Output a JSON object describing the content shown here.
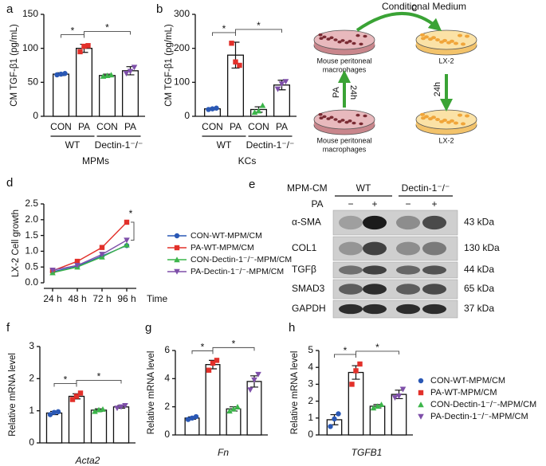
{
  "chart_data": [
    {
      "type": "bar",
      "panel": "a",
      "y_label": "CM TGF-β1 (pg/mL)",
      "categories": [
        "CON",
        "PA",
        "CON",
        "PA"
      ],
      "values": [
        62,
        100,
        60,
        67
      ],
      "errors": [
        2,
        6,
        2,
        6
      ],
      "points": [
        [
          61,
          62,
          63
        ],
        [
          95,
          103,
          104
        ],
        [
          59,
          60,
          61
        ],
        [
          63,
          66,
          72
        ]
      ],
      "colors": [
        "#2a58b5",
        "#e2302a",
        "#3cb54a",
        "#7e4fa9"
      ],
      "ylim": [
        0,
        150
      ],
      "yticks": [
        0,
        50,
        100,
        150
      ],
      "groups": [
        {
          "label": "WT",
          "categories": [
            0,
            1
          ]
        },
        {
          "label": "Dectin-1⁻/⁻",
          "categories": [
            2,
            3
          ]
        }
      ],
      "group_title": "MPMs",
      "significance": [
        {
          "pair": [
            0,
            1
          ],
          "label": "*"
        },
        {
          "pair": [
            1,
            3
          ],
          "label": "*"
        }
      ]
    },
    {
      "type": "bar",
      "panel": "b",
      "y_label": "CM TGF-β1 (pg/mL)",
      "categories": [
        "CON",
        "PA",
        "CON",
        "PA"
      ],
      "values": [
        22,
        180,
        20,
        92
      ],
      "errors": [
        3,
        38,
        8,
        14
      ],
      "points": [
        [
          20,
          22,
          24
        ],
        [
          215,
          160,
          150
        ],
        [
          12,
          16,
          32
        ],
        [
          80,
          95,
          102
        ]
      ],
      "colors": [
        "#2a58b5",
        "#e2302a",
        "#3cb54a",
        "#7e4fa9"
      ],
      "ylim": [
        0,
        300
      ],
      "yticks": [
        0,
        100,
        200,
        300
      ],
      "groups": [
        {
          "label": "WT",
          "categories": [
            0,
            1
          ]
        },
        {
          "label": "Dectin-1⁻/⁻",
          "categories": [
            2,
            3
          ]
        }
      ],
      "group_title": "KCs",
      "significance": [
        {
          "pair": [
            0,
            1
          ],
          "label": "*"
        },
        {
          "pair": [
            1,
            3
          ],
          "label": "*"
        }
      ]
    },
    {
      "type": "line",
      "panel": "d",
      "y_label": "LX-2 Cell growth",
      "x_label": "Time",
      "categories": [
        "24 h",
        "48 h",
        "72 h",
        "96 h"
      ],
      "series": [
        {
          "name": "CON-WT-MPM/CM",
          "color": "#2a58b5",
          "values": [
            0.35,
            0.52,
            0.85,
            1.18
          ]
        },
        {
          "name": "PA-WT-MPM/CM",
          "color": "#e2302a",
          "values": [
            0.38,
            0.68,
            1.12,
            1.92
          ]
        },
        {
          "name": "CON-Dectin-1⁻/⁻-MPM/CM",
          "color": "#3cb54a",
          "values": [
            0.32,
            0.5,
            0.82,
            1.2
          ]
        },
        {
          "name": "PA-Dectin-1⁻/⁻-MPM/CM",
          "color": "#7e4fa9",
          "values": [
            0.4,
            0.55,
            0.9,
            1.35
          ]
        }
      ],
      "ylim": [
        0,
        2.5
      ],
      "yticks": [
        {
          "value": 0,
          "label": "0.0"
        },
        0.5,
        {
          "value": 1,
          "label": "1.0"
        },
        1.5,
        {
          "value": 2,
          "label": "2.0"
        },
        2.5
      ],
      "significance": [
        {
          "series": [
            1,
            3
          ],
          "label": "*"
        }
      ]
    },
    {
      "type": "bar",
      "panel": "f",
      "y_label": "Relative mRNA level",
      "x_label": "Acta2",
      "categories": [
        null,
        null,
        null,
        null
      ],
      "values": [
        0.93,
        1.45,
        1.02,
        1.12
      ],
      "errors": [
        0.05,
        0.08,
        0.04,
        0.04
      ],
      "points": [
        [
          0.88,
          0.95,
          0.97
        ],
        [
          1.35,
          1.45,
          1.55
        ],
        [
          0.98,
          1.03,
          1.05
        ],
        [
          1.08,
          1.12,
          1.16
        ]
      ],
      "colors": [
        "#2a58b5",
        "#e2302a",
        "#3cb54a",
        "#7e4fa9"
      ],
      "ylim": [
        0,
        3
      ],
      "yticks": [
        0,
        1,
        2,
        3
      ],
      "significance": [
        {
          "pair": [
            0,
            1
          ],
          "label": "*"
        },
        {
          "pair": [
            1,
            3
          ],
          "label": "*"
        }
      ]
    },
    {
      "type": "bar",
      "panel": "g",
      "y_label": "Relative mRNA level",
      "x_label": "Fn",
      "categories": [
        null,
        null,
        null,
        null
      ],
      "values": [
        1.2,
        5.0,
        1.85,
        3.8
      ],
      "errors": [
        0.08,
        0.3,
        0.15,
        0.4
      ],
      "points": [
        [
          1.1,
          1.2,
          1.3
        ],
        [
          4.6,
          5.1,
          5.3
        ],
        [
          1.7,
          1.85,
          2.0
        ],
        [
          3.2,
          3.9,
          4.3
        ]
      ],
      "colors": [
        "#2a58b5",
        "#e2302a",
        "#3cb54a",
        "#7e4fa9"
      ],
      "ylim": [
        0,
        6
      ],
      "yticks": [
        0,
        2,
        4,
        6
      ],
      "significance": [
        {
          "pair": [
            0,
            1
          ],
          "label": "*"
        },
        {
          "pair": [
            1,
            3
          ],
          "label": "*"
        }
      ]
    },
    {
      "type": "bar",
      "panel": "h",
      "y_label": "Relative mRNA level",
      "x_label": "TGFB1",
      "categories": [
        null,
        null,
        null,
        null
      ],
      "values": [
        0.9,
        3.7,
        1.7,
        2.4
      ],
      "errors": [
        0.3,
        0.4,
        0.1,
        0.25
      ],
      "points": [
        [
          0.5,
          0.95,
          1.25
        ],
        [
          3.0,
          3.8,
          4.2
        ],
        [
          1.6,
          1.7,
          1.8
        ],
        [
          2.2,
          2.3,
          2.7
        ]
      ],
      "colors": [
        "#2a58b5",
        "#e2302a",
        "#3cb54a",
        "#7e4fa9"
      ],
      "ylim": [
        0,
        5
      ],
      "yticks": [
        0,
        1,
        2,
        3,
        4,
        5
      ],
      "significance": [
        {
          "pair": [
            0,
            1
          ],
          "label": "*"
        },
        {
          "pair": [
            1,
            3
          ],
          "label": "*"
        }
      ],
      "legend": [
        "CON-WT-MPM/CM",
        "PA-WT-MPM/CM",
        "CON-Dectin-1⁻/⁻-MPM/CM",
        "PA-Dectin-1⁻/⁻-MPM/CM"
      ]
    }
  ],
  "diagram": {
    "panel": "c",
    "arrow_label": "Conditional Medium",
    "dishes": [
      {
        "label": [
          "Mouse peritoneal",
          "macrophages"
        ]
      },
      {
        "label": [
          "LX-2"
        ]
      },
      {
        "label": [
          "Mouse peritoneal",
          "macrophages"
        ]
      },
      {
        "label": [
          "LX-2"
        ]
      }
    ],
    "left_arrow": [
      "PA",
      "24h"
    ],
    "right_arrow": "24h"
  },
  "blot": {
    "panel": "e",
    "header": "MPM-CM",
    "groups": [
      "WT",
      "Dectin-1⁻/⁻"
    ],
    "row_label": "PA",
    "lanes": [
      "−",
      "+",
      "−",
      "+"
    ],
    "proteins": [
      "α-SMA",
      "COL1",
      "TGFβ",
      "SMAD3",
      "GAPDH"
    ],
    "weights": [
      "43 kDa",
      "130 kDa",
      "44 kDa",
      "65 kDa",
      "37 kDa"
    ]
  }
}
